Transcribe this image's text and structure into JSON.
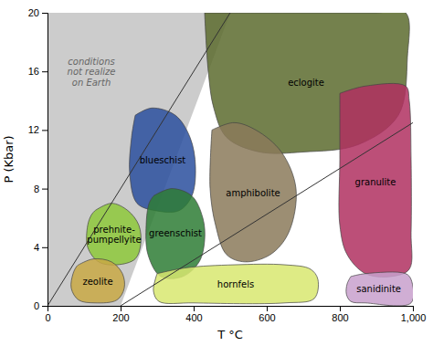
{
  "chart_data": {
    "type": "polygon",
    "x_label": "T °C",
    "y_label": "P (Kbar)",
    "xlim": [
      0,
      1000
    ],
    "ylim": [
      0,
      20
    ],
    "xticks": [
      0,
      200,
      400,
      600,
      800,
      {
        "value": 1000,
        "label": "1,000"
      }
    ],
    "yticks": [
      0,
      4,
      8,
      12,
      16,
      20
    ],
    "annotations": [
      "conditions\nnot realize\non Earth"
    ],
    "gray_zone": {
      "color": "#cccccc",
      "x": [
        0,
        0,
        500,
        200
      ],
      "values": [
        0,
        20,
        20,
        0
      ]
    },
    "lines": [
      {
        "color": "#333333",
        "x": [
          0,
          500
        ],
        "values": [
          0,
          20
        ]
      },
      {
        "color": "#333333",
        "x": [
          200,
          1000
        ],
        "values": [
          0,
          12.5
        ]
      }
    ],
    "series": [
      {
        "name": "eclogite",
        "color": "#5c6b2e",
        "x": [
          430,
          700,
          900,
          980,
          985,
          960,
          850,
          700,
          580,
          490,
          455,
          440,
          430
        ],
        "values": [
          20,
          20,
          20,
          20,
          17,
          13,
          11,
          10.5,
          10.5,
          11.5,
          13.5,
          16,
          20
        ]
      },
      {
        "name": "blueschist",
        "color": "#2a4f9e",
        "x": [
          240,
          285,
          350,
          390,
          405,
          395,
          360,
          295,
          245,
          225,
          230,
          240
        ],
        "values": [
          13,
          13.5,
          13,
          11.5,
          9.5,
          7.5,
          6.5,
          6.5,
          7,
          9,
          11.5,
          13
        ]
      },
      {
        "name": "amphibolite",
        "color": "#8b7a5a",
        "x": [
          450,
          510,
          570,
          640,
          680,
          660,
          610,
          540,
          490,
          460,
          445,
          450
        ],
        "values": [
          12,
          12.5,
          12,
          10.5,
          8,
          5,
          3.5,
          3,
          3.5,
          5.5,
          8,
          12
        ]
      },
      {
        "name": "greenschist",
        "color": "#2e7c35",
        "x": [
          290,
          340,
          395,
          425,
          430,
          415,
          370,
          310,
          275,
          270,
          278,
          290
        ],
        "values": [
          7.5,
          8,
          7.5,
          6,
          4.5,
          3,
          2,
          2,
          3.5,
          5.5,
          7,
          7.5
        ]
      },
      {
        "name": "prehnite-\npumpellyite",
        "color": "#8dc83a",
        "x": [
          130,
          175,
          220,
          250,
          255,
          240,
          190,
          140,
          110,
          110,
          120,
          130
        ],
        "values": [
          6.5,
          7,
          6.5,
          5.5,
          4.2,
          3.2,
          2.8,
          3,
          4,
          5.5,
          6.2,
          6.5
        ]
      },
      {
        "name": "zeolite",
        "color": "#c8a844",
        "x": [
          85,
          125,
          175,
          205,
          210,
          190,
          130,
          85,
          65,
          70,
          80,
          85
        ],
        "values": [
          2.8,
          3.2,
          3,
          2.2,
          1.2,
          0.4,
          0.2,
          0.4,
          1.2,
          2.2,
          2.7,
          2.8
        ]
      },
      {
        "name": "hornfels",
        "color": "#d8e870",
        "x": [
          300,
          380,
          510,
          650,
          720,
          740,
          730,
          650,
          400,
          305,
          290,
          295,
          300
        ],
        "values": [
          2.2,
          2.6,
          2.8,
          2.8,
          2.5,
          1.8,
          0.5,
          0.2,
          0.2,
          0.3,
          1.0,
          1.8,
          2.2
        ]
      },
      {
        "name": "granulite",
        "color": "#b03060",
        "x": [
          800,
          870,
          980,
          990,
          995,
          995,
          990,
          940,
          870,
          820,
          800,
          800,
          800
        ],
        "values": [
          14.5,
          15,
          15,
          14,
          10,
          5,
          2.5,
          2,
          2.2,
          3.5,
          5.5,
          10,
          14.5
        ]
      },
      {
        "name": "sanidinite",
        "color": "#c8a0cc",
        "x": [
          830,
          870,
          980,
          995,
          995,
          870,
          830,
          818,
          820,
          830
        ],
        "values": [
          2,
          2.2,
          2.2,
          1.8,
          0.2,
          0.2,
          0.3,
          0.8,
          1.5,
          2
        ]
      }
    ]
  }
}
